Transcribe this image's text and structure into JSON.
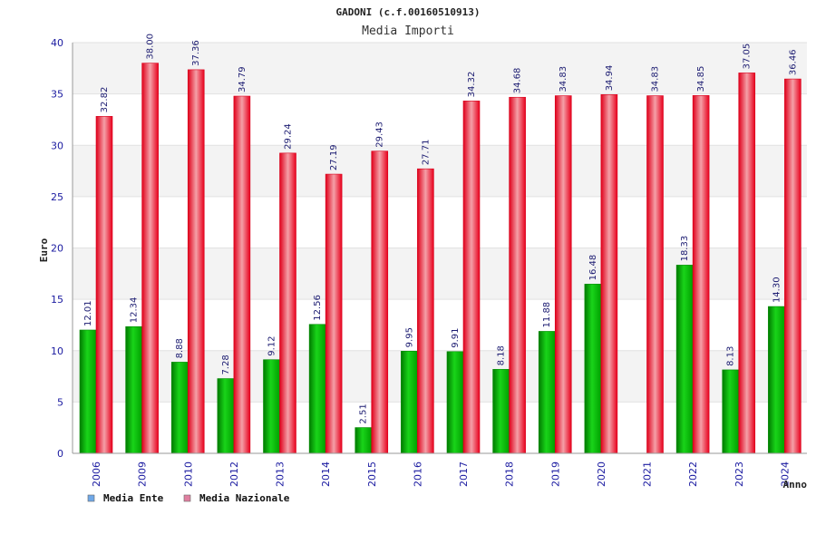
{
  "chart_data": {
    "type": "bar",
    "title": "GADONI (c.f.00160510913)",
    "subtitle": "Media Importi",
    "xlabel": "Anno",
    "ylabel": "Euro",
    "ylim": [
      0,
      40
    ],
    "yticks": [
      0,
      5,
      10,
      15,
      20,
      25,
      30,
      35,
      40
    ],
    "categories": [
      "2006",
      "2009",
      "2010",
      "2012",
      "2013",
      "2014",
      "2015",
      "2016",
      "2017",
      "2018",
      "2019",
      "2020",
      "2021",
      "2022",
      "2023",
      "2024"
    ],
    "series": [
      {
        "name": "Media Ente",
        "color": "#00b000",
        "values": [
          12.01,
          12.34,
          8.88,
          7.28,
          9.12,
          12.56,
          2.51,
          9.95,
          9.91,
          8.18,
          11.88,
          16.48,
          null,
          18.33,
          8.13,
          14.3
        ],
        "labels": [
          "12.01",
          "12.34",
          "8.88",
          "7.28",
          "9.12",
          "12.56",
          "2.51",
          "9.95",
          "9.91",
          "8.18",
          "11.88",
          "16.48",
          "",
          "18.33",
          "8.13",
          "14.30"
        ]
      },
      {
        "name": "Media Nazionale",
        "color": "#ee1122",
        "values": [
          32.82,
          38.0,
          37.36,
          34.79,
          29.24,
          27.19,
          29.43,
          27.71,
          34.32,
          34.68,
          34.83,
          34.94,
          34.83,
          34.85,
          37.05,
          36.46
        ],
        "labels": [
          "32.82",
          "38.00",
          "37.36",
          "34.79",
          "29.24",
          "27.19",
          "29.43",
          "27.71",
          "34.32",
          "34.68",
          "34.83",
          "34.94",
          "34.83",
          "34.85",
          "37.05",
          "36.46"
        ]
      }
    ],
    "legend": [
      {
        "label": "Media Ente",
        "color": "#6fa8e8"
      },
      {
        "label": "Media Nazionale",
        "color": "#e07fa0"
      }
    ]
  }
}
